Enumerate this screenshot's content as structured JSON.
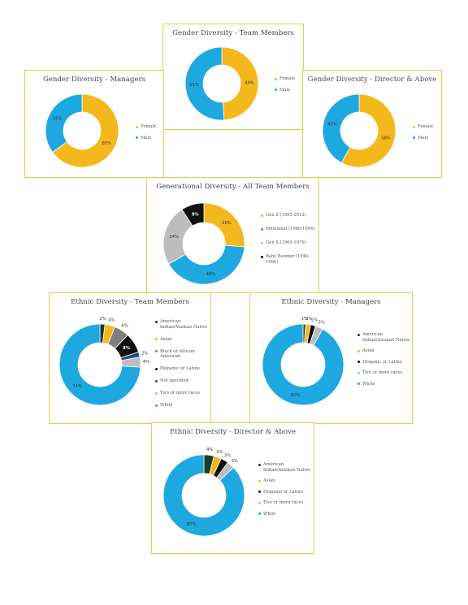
{
  "chart_data": [
    {
      "id": "gender-team",
      "type": "pie",
      "title": "Gender Diversity - Team Members",
      "categories": [
        "Female",
        "Male"
      ],
      "values": [
        49,
        51
      ],
      "labels": [
        "49%",
        "51%"
      ],
      "colors": [
        "#f5b81c",
        "#1ea8e0"
      ]
    },
    {
      "id": "gender-managers",
      "type": "pie",
      "title": "Gender Diversity - Managers",
      "categories": [
        "Female",
        "Male"
      ],
      "values": [
        65,
        35
      ],
      "labels": [
        "65%",
        "35%"
      ],
      "colors": [
        "#f5b81c",
        "#1ea8e0"
      ]
    },
    {
      "id": "gender-director",
      "type": "pie",
      "title": "Gender Diversity - Director & Above",
      "categories": [
        "Female",
        "Male"
      ],
      "values": [
        58,
        42
      ],
      "labels": [
        "58%",
        "42%"
      ],
      "colors": [
        "#f5b81c",
        "#1ea8e0"
      ]
    },
    {
      "id": "generational",
      "type": "pie",
      "title": "Generational Diversity - All Team Members",
      "categories": [
        "Gen Z (1995-2012)",
        "Millennial (1980-1994)",
        "Gen X (1965-1979)",
        "Baby Boomer (1946-1964)"
      ],
      "values": [
        26,
        40,
        24,
        9
      ],
      "labels": [
        "26%",
        "40%",
        "24%",
        "9%"
      ],
      "colors": [
        "#f5b81c",
        "#1ea8e0",
        "#bdbdbd",
        "#111111"
      ]
    },
    {
      "id": "ethnic-team",
      "type": "pie",
      "title": "Ethnic Diversity - Team Members",
      "categories": [
        "American Indian/Alaskan Native",
        "Asian",
        "Black or African American",
        "Hispanic or Latino",
        "Not specified",
        "Two or more races",
        "White"
      ],
      "values": [
        2,
        4,
        6,
        8,
        2,
        4,
        74
      ],
      "labels": [
        "2%",
        "4%",
        "6%",
        "8%",
        "2%",
        "4%",
        "74%"
      ],
      "colors": [
        "#1d3b24",
        "#f5b81c",
        "#7f7f7f",
        "#111111",
        "#1f4e79",
        "#bdbdbd",
        "#1ea8e0"
      ]
    },
    {
      "id": "ethnic-managers",
      "type": "pie",
      "title": "Ethnic Diversity - Managers",
      "categories": [
        "American Indian/Alaskan Native",
        "Asian",
        "Hispanic or Latino",
        "Two or more races",
        "White"
      ],
      "values": [
        1,
        2,
        2,
        3,
        92
      ],
      "labels": [
        "1%",
        "2%",
        "2%",
        "3%",
        "92%"
      ],
      "colors": [
        "#1d3b24",
        "#f5b81c",
        "#111111",
        "#bdbdbd",
        "#1ea8e0"
      ]
    },
    {
      "id": "ethnic-director",
      "type": "pie",
      "title": "Ethnic Diversity - Director & Above",
      "categories": [
        "American Indian/Alaskan Native",
        "Asian",
        "Hispanic or Latino",
        "Two or more races",
        "White"
      ],
      "values": [
        4,
        3,
        3,
        3,
        87
      ],
      "labels": [
        "4%",
        "3%",
        "3%",
        "3%",
        "87%"
      ],
      "colors": [
        "#1d3b24",
        "#f5b81c",
        "#111111",
        "#bdbdbd",
        "#1ea8e0"
      ]
    }
  ]
}
